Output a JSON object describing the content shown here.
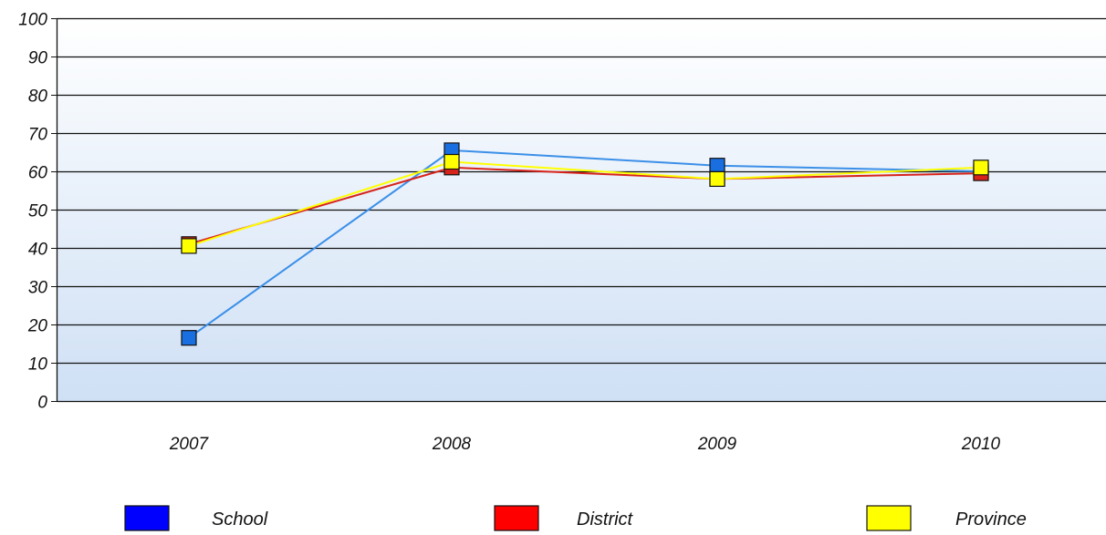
{
  "chart_data": {
    "type": "line",
    "categories": [
      "2007",
      "2008",
      "2009",
      "2010"
    ],
    "series": [
      {
        "name": "School",
        "color": "#0000ff",
        "line_color": "#3b8fe8",
        "marker_color": "#1a6fe0",
        "values": [
          16.5,
          65.5,
          61.5,
          60.0
        ]
      },
      {
        "name": "District",
        "color": "#ff0000",
        "line_color": "#d8231b",
        "marker_color": "#d8231b",
        "values": [
          41.0,
          61.0,
          58.0,
          59.5
        ]
      },
      {
        "name": "Province",
        "color": "#ffff00",
        "line_color": "#ffff00",
        "marker_color": "#ffff00",
        "values": [
          40.5,
          62.5,
          58.0,
          61.0
        ]
      }
    ],
    "yticks": [
      "0",
      "10",
      "20",
      "30",
      "40",
      "50",
      "60",
      "70",
      "80",
      "90",
      "100"
    ],
    "ylim": [
      0,
      100
    ],
    "grid": true,
    "legend_position": "bottom",
    "plot_background": {
      "top": "#ffffff",
      "bottom": "#cfe0f5"
    }
  }
}
